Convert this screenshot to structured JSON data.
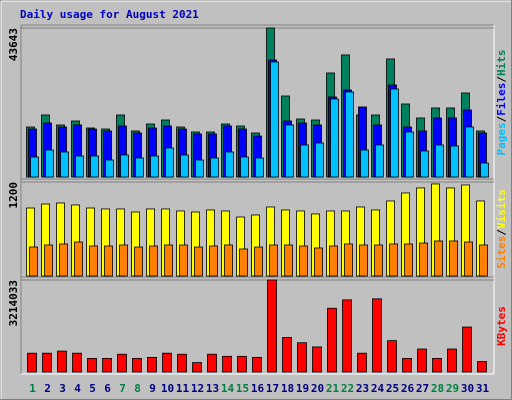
{
  "chart_data": {
    "type": "bar",
    "title": "Daily usage for August 2021",
    "categories": [
      "1",
      "2",
      "3",
      "4",
      "5",
      "6",
      "7",
      "8",
      "9",
      "10",
      "11",
      "12",
      "13",
      "14",
      "15",
      "16",
      "17",
      "18",
      "19",
      "20",
      "21",
      "22",
      "23",
      "24",
      "25",
      "26",
      "27",
      "28",
      "29",
      "30",
      "31"
    ],
    "category_colors": [
      "#008040",
      "#000080",
      "#000080",
      "#000080",
      "#000080",
      "#000080",
      "#008040",
      "#008040",
      "#000080",
      "#000080",
      "#000080",
      "#000080",
      "#000080",
      "#008040",
      "#008040",
      "#000080",
      "#000080",
      "#000080",
      "#000080",
      "#000080",
      "#008040",
      "#008040",
      "#000080",
      "#000080",
      "#000080",
      "#000080",
      "#000080",
      "#008040",
      "#008040",
      "#000080",
      "#000080"
    ],
    "legend_separator": "/",
    "panels": [
      {
        "ylim": [
          0,
          43643
        ],
        "yticks": [
          43643
        ],
        "series": [
          {
            "name": "Hits",
            "color": "#00805c",
            "values": [
              14650,
              18170,
              15240,
              16410,
              14360,
              14060,
              18170,
              13480,
              15530,
              16700,
              14650,
              13190,
              13190,
              15530,
              14940,
              12890,
              43643,
              23730,
              16990,
              16700,
              30470,
              35750,
              18170,
              18170,
              34570,
              21390,
              17290,
              20220,
              20220,
              24610,
              13480
            ]
          },
          {
            "name": "Files",
            "color": "#0000ff",
            "values": [
              14060,
              15820,
              14650,
              15240,
              14060,
              13480,
              14940,
              12890,
              14360,
              14940,
              14060,
              12600,
              12600,
              14940,
              14060,
              12010,
              34280,
              16410,
              15820,
              15240,
              23440,
              25490,
              20510,
              15240,
              26960,
              14650,
              13480,
              17290,
              17290,
              19630,
              12890
            ]
          },
          {
            "name": "Pages",
            "color": "#00c0ff",
            "values": [
              5860,
              7910,
              7330,
              6150,
              6150,
              4980,
              6450,
              5570,
              6150,
              8500,
              6450,
              4980,
              5570,
              7330,
              5860,
              5570,
              33700,
              15240,
              9380,
              9960,
              22850,
              24900,
              7910,
              9380,
              25780,
              13190,
              7620,
              9380,
              9080,
              14650,
              4100
            ]
          }
        ]
      },
      {
        "ylim": [
          0,
          1200
        ],
        "yticks": [
          1200
        ],
        "series": [
          {
            "name": "Visits",
            "color": "#ffff00",
            "values": [
              868,
              919,
              932,
              907,
              868,
              856,
              856,
              817,
              856,
              856,
              830,
              817,
              843,
              830,
              753,
              779,
              881,
              843,
              830,
              792,
              830,
              830,
              881,
              843,
              958,
              1060,
              1124,
              1175,
              1124,
              1162,
              958
            ]
          },
          {
            "name": "Sites",
            "color": "#ff8000",
            "values": [
              370,
              396,
              409,
              434,
              383,
              383,
              396,
              370,
              383,
              396,
              396,
              370,
              383,
              396,
              345,
              370,
              396,
              396,
              383,
              358,
              383,
              409,
              396,
              396,
              409,
              409,
              421,
              447,
              447,
              434,
              396
            ]
          }
        ]
      },
      {
        "ylim": [
          0,
          3214033
        ],
        "yticks": [
          3214033
        ],
        "series": [
          {
            "name": "KBytes",
            "color": "#ff0000",
            "values": [
              657414,
              657414,
              730460,
              657414,
              474799,
              474799,
              620891,
              474799,
              511322,
              657414,
              620891,
              328707,
              620891,
              547845,
              547845,
              511322,
              3214033,
              1205259,
              1022644,
              876552,
              2227903,
              2520087,
              657414,
              2556610,
              1095690,
              474799,
              803506,
              474799,
              803506,
              1570489,
              365230
            ]
          }
        ]
      }
    ]
  }
}
